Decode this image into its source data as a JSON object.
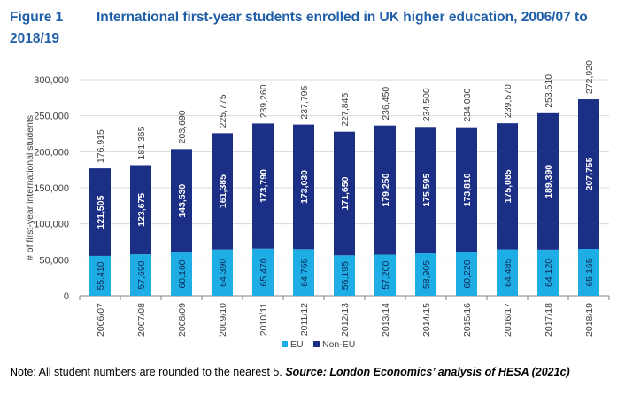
{
  "figure": {
    "label": "Figure 1",
    "title": "International first-year students enrolled in UK higher education, 2006/07 to 2018/19"
  },
  "note": {
    "text": "Note: All student numbers are rounded to the nearest 5. ",
    "source": "Source: London Economics’ analysis of HESA (2021c)"
  },
  "colors": {
    "eu": "#1eaee5",
    "non_eu": "#1c2f86",
    "grid": "#d9d9d9",
    "axis": "#808080"
  },
  "chart_data": {
    "type": "bar",
    "stacked": true,
    "title": "International first-year students enrolled in UK higher education, 2006/07 to 2018/19",
    "xlabel": "",
    "ylabel": "# of first-year international students",
    "ylim": [
      0,
      300000
    ],
    "yticks": [
      0,
      50000,
      100000,
      150000,
      200000,
      250000,
      300000
    ],
    "ytick_labels": [
      "0",
      "50,000",
      "100,000",
      "150,000",
      "200,000",
      "250,000",
      "300,000"
    ],
    "grid": true,
    "legend_position": "bottom-center",
    "categories": [
      "2006/07",
      "2007/08",
      "2008/09",
      "2009/10",
      "2010/11",
      "2011/12",
      "2012/13",
      "2013/14",
      "2014/15",
      "2015/16",
      "2016/17",
      "2017/18",
      "2018/19"
    ],
    "series": [
      {
        "name": "EU",
        "values": [
          55410,
          57690,
          60160,
          64390,
          65470,
          64765,
          56195,
          57200,
          58905,
          60220,
          64485,
          64120,
          65165
        ],
        "labels": [
          "55,410",
          "57,690",
          "60,160",
          "64,390",
          "65,470",
          "64,765",
          "56,195",
          "57,200",
          "58,905",
          "60,220",
          "64,485",
          "64,120",
          "65,165"
        ]
      },
      {
        "name": "Non-EU",
        "values": [
          121505,
          123675,
          143530,
          161385,
          173790,
          173030,
          171650,
          179250,
          175595,
          173810,
          175085,
          189390,
          207755
        ],
        "labels": [
          "121,505",
          "123,675",
          "143,530",
          "161,385",
          "173,790",
          "173,030",
          "171,650",
          "179,250",
          "175,595",
          "173,810",
          "175,085",
          "189,390",
          "207,755"
        ]
      }
    ],
    "totals": [
      176915,
      181365,
      203690,
      225775,
      239260,
      237795,
      227845,
      236450,
      234500,
      234030,
      239570,
      253510,
      272920
    ],
    "total_labels": [
      "176,915",
      "181,365",
      "203,690",
      "225,775",
      "239,260",
      "237,795",
      "227,845",
      "236,450",
      "234,500",
      "234,030",
      "239,570",
      "253,510",
      "272,920"
    ]
  }
}
